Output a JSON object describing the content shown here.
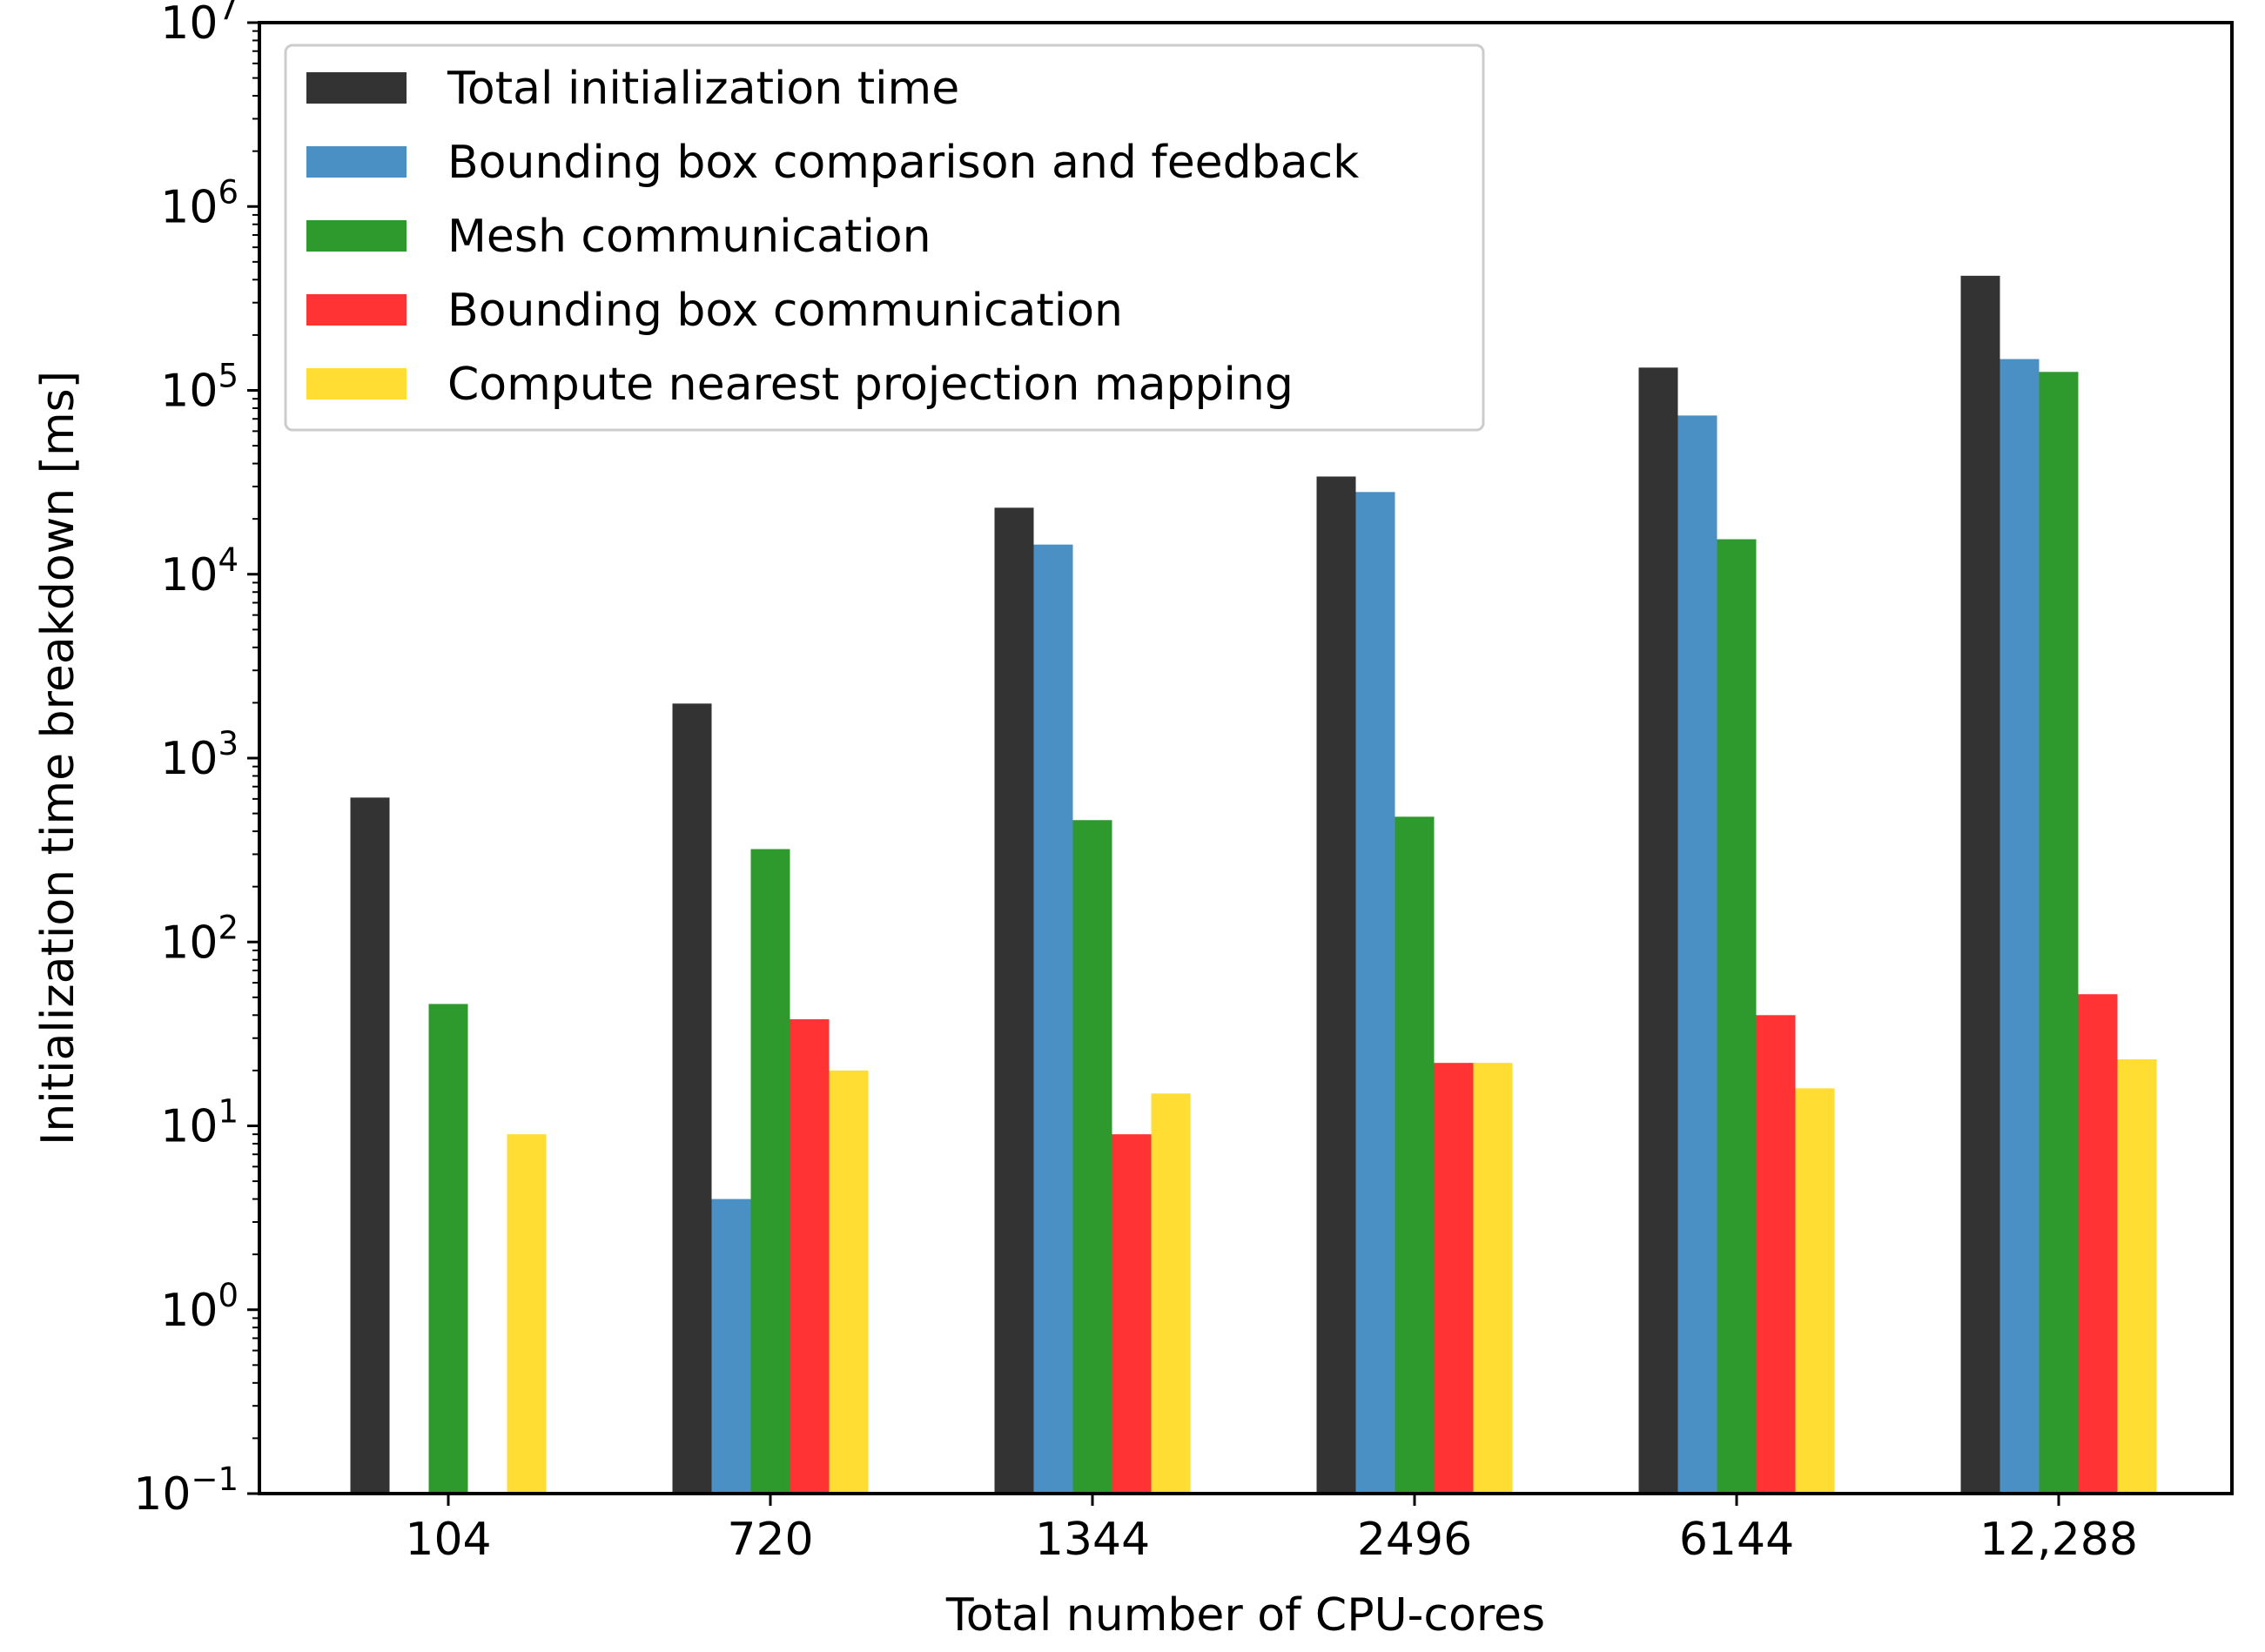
{
  "chart_data": {
    "type": "bar",
    "title": "",
    "xlabel": "Total number of CPU-cores",
    "ylabel": "Initialization time breakdown [ms]",
    "yscale": "log",
    "ylim": [
      0.1,
      10000000
    ],
    "grid": false,
    "legend_position": "top-left",
    "categories": [
      "104",
      "720",
      "1344",
      "2496",
      "6144",
      "12,288"
    ],
    "y_ticks": [
      {
        "base": "10",
        "exp": "−1"
      },
      {
        "base": "10",
        "exp": "0"
      },
      {
        "base": "10",
        "exp": "1"
      },
      {
        "base": "10",
        "exp": "2"
      },
      {
        "base": "10",
        "exp": "3"
      },
      {
        "base": "10",
        "exp": "4"
      },
      {
        "base": "10",
        "exp": "5"
      },
      {
        "base": "10",
        "exp": "6"
      },
      {
        "base": "10",
        "exp": "7"
      }
    ],
    "series": [
      {
        "name": "Total initialization time",
        "color": "#333333",
        "values": [
          610,
          1980,
          23000,
          34000,
          133000,
          420000
        ]
      },
      {
        "name": "Bounding box comparison and feedback",
        "color": "#4a90c4",
        "values": [
          null,
          4,
          14500,
          28000,
          73000,
          148000
        ]
      },
      {
        "name": "Mesh communication",
        "color": "#2e9a2e",
        "values": [
          46,
          320,
          460,
          480,
          15500,
          126000
        ]
      },
      {
        "name": "Bounding box communication",
        "color": "#ff3333",
        "values": [
          null,
          38,
          9,
          22,
          40,
          52
        ]
      },
      {
        "name": "Compute nearest projection mapping",
        "color": "#ffdd33",
        "values": [
          9,
          20,
          15,
          22,
          16,
          23
        ]
      }
    ]
  }
}
